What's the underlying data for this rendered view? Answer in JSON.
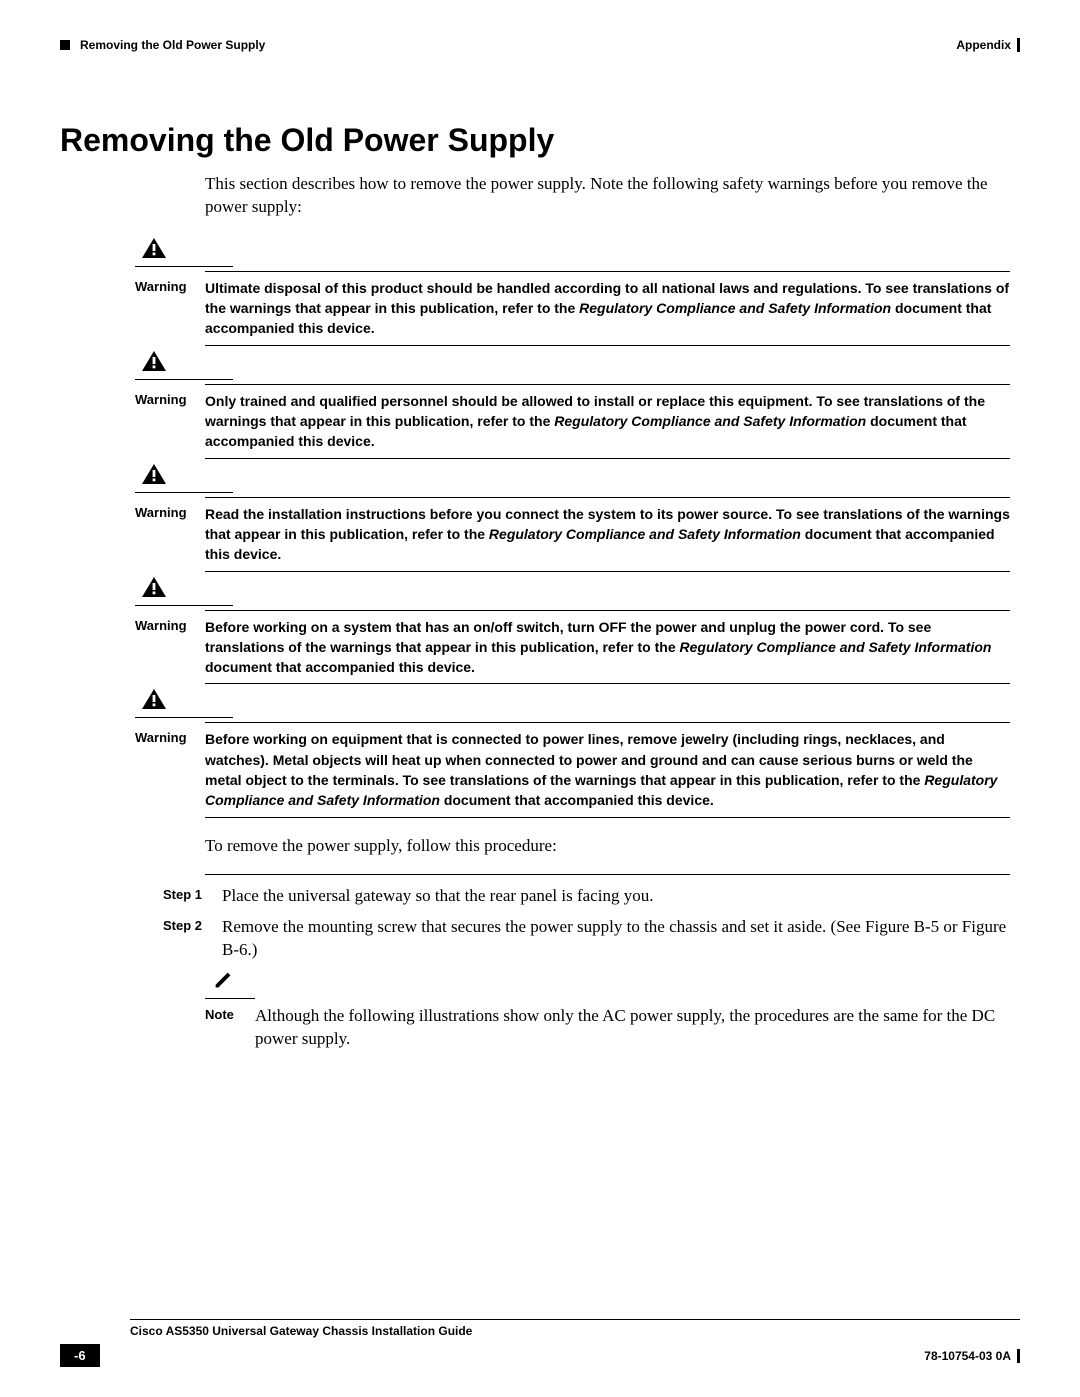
{
  "header": {
    "section_left": "Removing the Old Power Supply",
    "section_right": "Appendix"
  },
  "title": "Removing the Old Power Supply",
  "intro": "This section describes how to remove the power supply. Note the following safety warnings before you remove the power supply:",
  "warning_label": "Warning",
  "warnings": [
    {
      "pre": "Ultimate disposal of this product should be handled according to all national laws and regulations. To see translations of the warnings that appear in this publication, refer to the ",
      "em": "Regulatory Compliance and Safety Information",
      "post": " document that accompanied this device."
    },
    {
      "pre": "Only trained and qualified personnel should be allowed to install or replace this equipment. To see translations of the warnings that appear in this publication, refer to the ",
      "em": "Regulatory Compliance and Safety Information",
      "post": " document that accompanied this device."
    },
    {
      "pre": "Read the installation instructions before you connect the system to its power source. To see translations of the warnings that appear in this publication, refer to the ",
      "em": "Regulatory Compliance and Safety Information",
      "post": " document that accompanied this device."
    },
    {
      "pre": "Before working on a system that has an on/off switch, turn OFF the power and unplug the power cord. To see translations of the warnings that appear in this publication, refer to the ",
      "em": "Regulatory Compliance and Safety Information",
      "post": " document that accompanied this device."
    },
    {
      "pre": "Before working on equipment that is connected to power lines, remove jewelry (including rings, necklaces, and watches). Metal objects will heat up when connected to power and ground and can cause serious burns or weld the metal object to the terminals. To see translations of the warnings that appear in this publication, refer to the ",
      "em": "Regulatory Compliance and Safety Information",
      "post": " document that accompanied this device."
    }
  ],
  "procedure_intro": "To remove the power supply, follow this procedure:",
  "steps": [
    {
      "label": "Step 1",
      "text": "Place the universal gateway so that the rear panel is facing you."
    },
    {
      "label": "Step 2",
      "text": "Remove the mounting screw that secures the power supply to the chassis and set it aside. (See Figure B-5 or Figure B-6.)"
    }
  ],
  "note_label": "Note",
  "note_text": "Although the following illustrations show only the AC power supply, the procedures are the same for the DC power supply.",
  "footer": {
    "guide": "Cisco AS5350 Universal Gateway Chassis Installation Guide",
    "page": "-6",
    "docnum": "78-10754-03 0A"
  },
  "colors": {
    "text": "#000000",
    "bg": "#ffffff"
  }
}
